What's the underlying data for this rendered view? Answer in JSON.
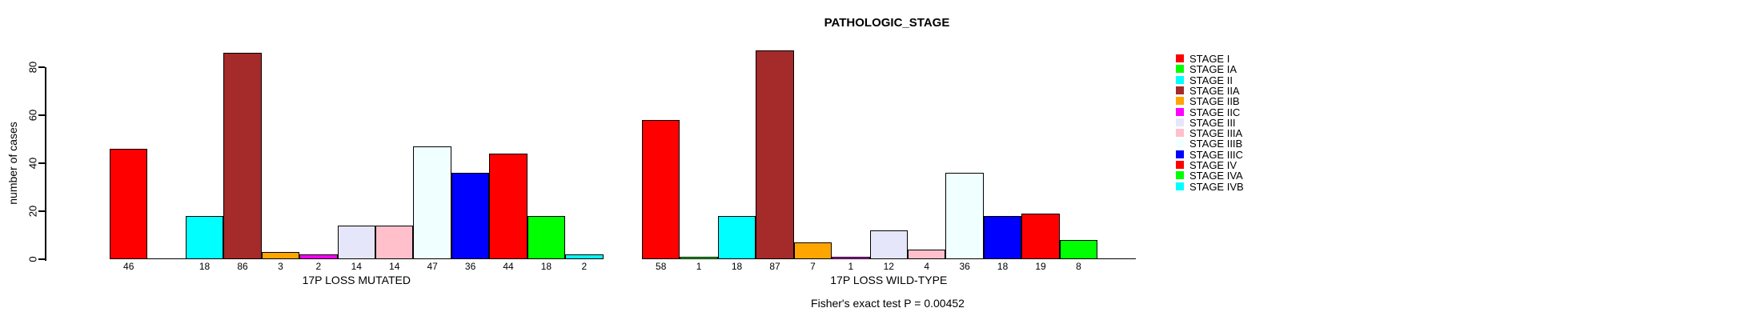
{
  "title": "PATHOLOGIC_STAGE",
  "chart_data": {
    "type": "bar",
    "title": "PATHOLOGIC_STAGE",
    "xlabel": "",
    "ylabel": "number of cases",
    "yticks": [
      0,
      20,
      40,
      60,
      80
    ],
    "ylim": [
      0,
      87
    ],
    "grid": false,
    "legend_position": "right",
    "annotation": "Fisher's exact test P = 0.00452",
    "stages": [
      {
        "name": "STAGE I",
        "color": "#FF0000"
      },
      {
        "name": "STAGE IA",
        "color": "#00FF00"
      },
      {
        "name": "STAGE II",
        "color": "#00FFFF"
      },
      {
        "name": "STAGE IIA",
        "color": "#A52A2A"
      },
      {
        "name": "STAGE IIB",
        "color": "#FFA500"
      },
      {
        "name": "STAGE IIC",
        "color": "#FF00FF"
      },
      {
        "name": "STAGE III",
        "color": "#E6E6FA"
      },
      {
        "name": "STAGE IIIA",
        "color": "#FFC0CB"
      },
      {
        "name": "STAGE IIIB",
        "color": "#F0FFFF"
      },
      {
        "name": "STAGE IIIC",
        "color": "#0000FF"
      },
      {
        "name": "STAGE IV",
        "color": "#FF0000"
      },
      {
        "name": "STAGE IVA",
        "color": "#00FF00"
      },
      {
        "name": "STAGE IVB",
        "color": "#00FFFF"
      }
    ],
    "groups": [
      {
        "label": "17P LOSS MUTATED",
        "values": [
          46,
          0,
          18,
          86,
          3,
          2,
          14,
          14,
          47,
          36,
          44,
          18,
          2
        ]
      },
      {
        "label": "17P LOSS WILD-TYPE",
        "values": [
          58,
          1,
          18,
          87,
          7,
          1,
          12,
          4,
          36,
          18,
          19,
          8,
          0
        ]
      }
    ]
  }
}
